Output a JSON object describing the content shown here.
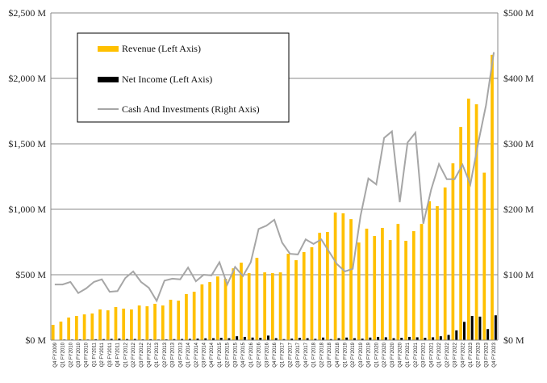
{
  "chart_data": {
    "type": "bar",
    "title": "",
    "xlabel": "",
    "ylabel": "",
    "ylim": [
      0,
      2500
    ],
    "y2lim": [
      0,
      500
    ],
    "grid": true,
    "legend_position": "top-left",
    "left_ticks": [
      "$0 M",
      "$500 M",
      "$1,000 M",
      "$1,500 M",
      "$2,000 M",
      "$2,500 M"
    ],
    "right_ticks": [
      "$0 M",
      "$100 M",
      "$200 M",
      "$300 M",
      "$400 M",
      "$500 M"
    ],
    "categories": [
      "Q4 FY2009",
      "Q1 FY2010",
      "Q2 FY2010",
      "Q3 FY2010",
      "Q4 FY2010",
      "Q1 FY2011",
      "Q2 FY2011",
      "Q3 FY2011",
      "Q4 FY2011",
      "Q1 FY2012",
      "Q2 FY2012",
      "Q3 FY2012",
      "Q4 FY2012",
      "Q1 FY2013",
      "Q2 FY2013",
      "Q3 FY2013",
      "Q4 FY2013",
      "Q1 FY2014",
      "Q2 FY2014",
      "Q3 FY2014",
      "Q4 FY2014",
      "Q1 FY2015",
      "Q2 FY2015",
      "Q3 FY2015",
      "Q4 FY2015",
      "Q1 FY2016",
      "Q2 FY2016",
      "Q3 FY2016",
      "Q4 FY2016",
      "Q1 FY2017",
      "Q2 FY2017",
      "Q3 FY2017",
      "Q4 FY2017",
      "Q1 FY2018",
      "Q2 FY2018",
      "Q3 FY2018",
      "Q4 FY2018",
      "Q1 FY2019",
      "Q2 FY2019",
      "Q3 FY2019",
      "Q4 FY2019",
      "Q1 FY2020",
      "Q2 FY2020",
      "Q3 FY2020",
      "Q4 FY2020",
      "Q1 FY2021",
      "Q2 FY2021",
      "Q3 FY2021",
      "Q4 FY2021",
      "Q1 FY2022",
      "Q2 FY2022",
      "Q3 FY2022",
      "Q4 FY2022",
      "Q1 FY2023",
      "Q2 FY2023",
      "Q3 FY2023",
      "Q4 FY2023"
    ],
    "series": [
      {
        "name": "Revenue (Left Axis)",
        "type": "bar",
        "axis": "left",
        "color": "#FFC000",
        "values": [
          117,
          142,
          173,
          185,
          197,
          204,
          235,
          228,
          253,
          241,
          235,
          265,
          259,
          278,
          265,
          309,
          302,
          352,
          370,
          426,
          444,
          487,
          469,
          549,
          592,
          512,
          629,
          518,
          512,
          518,
          660,
          611,
          673,
          710,
          820,
          827,
          975,
          969,
          925,
          746,
          852,
          796,
          858,
          765,
          888,
          759,
          833,
          888,
          1061,
          1024,
          1166,
          1351,
          1629,
          1845,
          1802,
          1280,
          2180
        ]
      },
      {
        "name": "Net Income (Left Axis)",
        "type": "bar",
        "axis": "left",
        "color": "#000000",
        "values": [
          3,
          5,
          5,
          6,
          5,
          7,
          8,
          10,
          12,
          8,
          9,
          6,
          7,
          5,
          6,
          8,
          9,
          10,
          12,
          14,
          15,
          18,
          15,
          30,
          25,
          20,
          18,
          35,
          15,
          8,
          12,
          18,
          15,
          10,
          20,
          8,
          15,
          20,
          15,
          12,
          20,
          25,
          22,
          15,
          18,
          25,
          22,
          18,
          22,
          30,
          40,
          75,
          140,
          185,
          180,
          85,
          190
        ]
      },
      {
        "name": "Cash And Investments (Right Axis)",
        "type": "line",
        "axis": "right",
        "color": "#A6A6A6",
        "values": [
          85,
          85,
          89,
          72,
          79,
          89,
          93,
          74,
          75,
          95,
          105,
          89,
          80,
          60,
          91,
          94,
          93,
          111,
          90,
          100,
          99,
          119,
          85,
          112,
          98,
          119,
          170,
          175,
          184,
          149,
          132,
          131,
          154,
          147,
          154,
          135,
          116,
          105,
          109,
          190,
          247,
          238,
          309,
          319,
          211,
          302,
          317,
          178,
          230,
          269,
          246,
          246,
          268,
          238,
          301,
          359,
          440
        ]
      }
    ]
  }
}
